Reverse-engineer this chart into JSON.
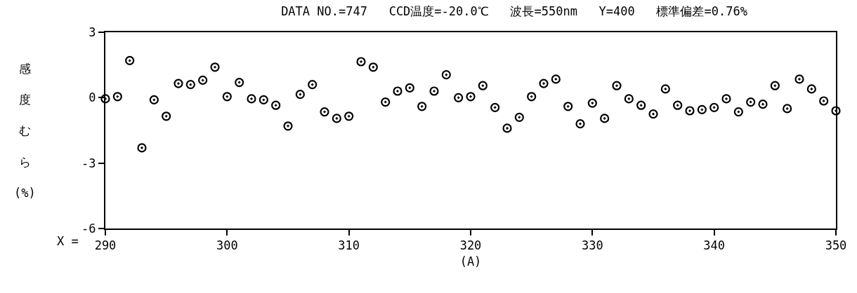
{
  "chart_data": {
    "type": "scatter",
    "title": "DATA NO.=747   CCD温度=-20.0℃   波長=550nm   Y=400   標準偏差=0.76%",
    "xlabel": "(A)",
    "ylabel": "感度むら (%)",
    "annotations": [
      "X ="
    ],
    "x": [
      290,
      291,
      292,
      293,
      294,
      295,
      296,
      297,
      298,
      299,
      300,
      301,
      302,
      303,
      304,
      305,
      306,
      307,
      308,
      309,
      310,
      311,
      312,
      313,
      314,
      315,
      316,
      317,
      318,
      319,
      320,
      321,
      322,
      323,
      324,
      325,
      326,
      327,
      328,
      329,
      330,
      331,
      332,
      333,
      334,
      335,
      336,
      337,
      338,
      339,
      340,
      341,
      342,
      343,
      344,
      345,
      346,
      347,
      348,
      349,
      350
    ],
    "series": [
      {
        "color": "#000000",
        "values": [
          -0.05,
          0.05,
          1.7,
          -2.3,
          -0.1,
          -0.85,
          0.65,
          0.6,
          0.8,
          1.4,
          0.05,
          0.7,
          -0.05,
          -0.1,
          -0.35,
          -1.3,
          0.15,
          0.6,
          -0.65,
          -0.95,
          -0.85,
          1.65,
          1.4,
          -0.2,
          0.3,
          0.45,
          -0.4,
          0.3,
          1.05,
          0.0,
          0.05,
          0.55,
          -0.45,
          -1.4,
          -0.9,
          0.05,
          0.65,
          0.85,
          -0.4,
          -1.2,
          -0.25,
          -0.95,
          0.55,
          -0.05,
          -0.35,
          -0.75,
          0.4,
          -0.35,
          -0.6,
          -0.55,
          -0.45,
          -0.05,
          -0.65,
          -0.2,
          -0.3,
          0.55,
          -0.5,
          0.85,
          0.4,
          -0.15,
          -0.6
        ]
      }
    ],
    "xlim": [
      290,
      350
    ],
    "xticks": [
      290,
      300,
      310,
      320,
      330,
      340,
      350
    ],
    "ylim": [
      -6,
      3
    ],
    "yticks": [
      3,
      0,
      -3,
      -6
    ],
    "grid": false,
    "marker": "circle"
  }
}
